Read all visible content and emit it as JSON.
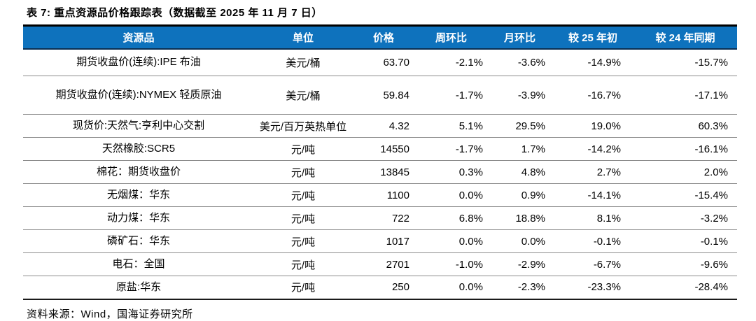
{
  "title": "表 7: 重点资源品价格跟踪表（数据截至 2025 年 11 月 7 日）",
  "source": "资料来源：Wind，国海证券研究所",
  "colors": {
    "header_bg": "#0e72bd",
    "header_text": "#ffffff",
    "top_border": "#000000",
    "row_line": "#8c8c8c"
  },
  "table": {
    "headers": [
      "资源品",
      "单位",
      "价格",
      "周环比",
      "月环比",
      "较 25 年初",
      "较 24 年同期"
    ],
    "rows": [
      {
        "name": "期货收盘价(连续):IPE 布油",
        "unit": "美元/桶",
        "price": "63.70",
        "wow": "-2.1%",
        "mom": "-3.6%",
        "vs_start_2025": "-14.9%",
        "vs_2024": "-15.7%"
      },
      {
        "name": "期货收盘价(连续):NYMEX 轻质原油",
        "unit": "美元/桶",
        "price": "59.84",
        "wow": "-1.7%",
        "mom": "-3.9%",
        "vs_start_2025": "-16.7%",
        "vs_2024": "-17.1%"
      },
      {
        "name": "现货价:天然气:亨利中心交割",
        "unit": "美元/百万英热单位",
        "price": "4.32",
        "wow": "5.1%",
        "mom": "29.5%",
        "vs_start_2025": "19.0%",
        "vs_2024": "60.3%"
      },
      {
        "name": "天然橡胶:SCR5",
        "unit": "元/吨",
        "price": "14550",
        "wow": "-1.7%",
        "mom": "1.7%",
        "vs_start_2025": "-14.2%",
        "vs_2024": "-16.1%"
      },
      {
        "name": "棉花：期货收盘价",
        "unit": "元/吨",
        "price": "13845",
        "wow": "0.3%",
        "mom": "4.8%",
        "vs_start_2025": "2.7%",
        "vs_2024": "2.0%"
      },
      {
        "name": "无烟煤：华东",
        "unit": "元/吨",
        "price": "1100",
        "wow": "0.0%",
        "mom": "0.9%",
        "vs_start_2025": "-14.1%",
        "vs_2024": "-15.4%"
      },
      {
        "name": "动力煤：华东",
        "unit": "元/吨",
        "price": "722",
        "wow": "6.8%",
        "mom": "18.8%",
        "vs_start_2025": "8.1%",
        "vs_2024": "-3.2%"
      },
      {
        "name": "磷矿石：华东",
        "unit": "元/吨",
        "price": "1017",
        "wow": "0.0%",
        "mom": "0.0%",
        "vs_start_2025": "-0.1%",
        "vs_2024": "-0.1%"
      },
      {
        "name": "电石：全国",
        "unit": "元/吨",
        "price": "2701",
        "wow": "-1.0%",
        "mom": "-2.9%",
        "vs_start_2025": "-6.7%",
        "vs_2024": "-9.6%"
      },
      {
        "name": "原盐:华东",
        "unit": "元/吨",
        "price": "250",
        "wow": "0.0%",
        "mom": "-2.3%",
        "vs_start_2025": "-23.3%",
        "vs_2024": "-28.4%"
      }
    ]
  }
}
